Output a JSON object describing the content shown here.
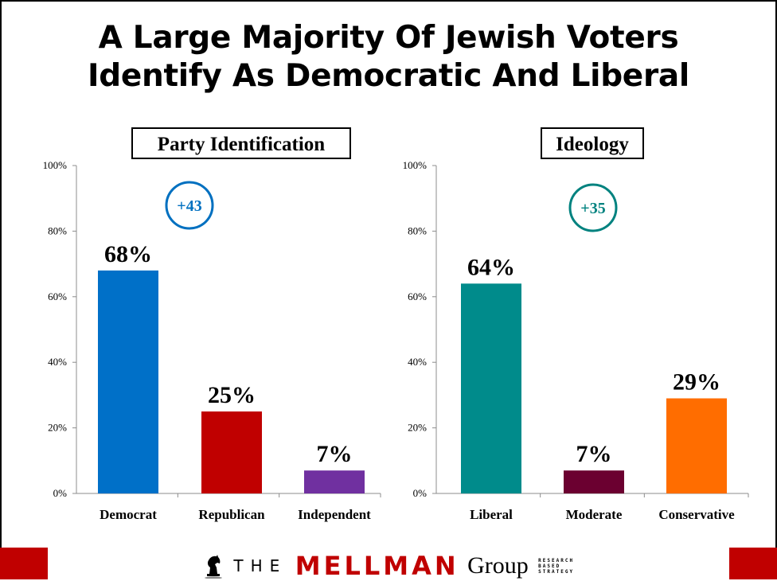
{
  "title_lines": [
    "A Large Majority Of Jewish Voters",
    "Identify As Democratic And Liberal"
  ],
  "chart_data": [
    {
      "type": "bar",
      "title": "Party Identification",
      "categories": [
        "Democrat",
        "Republican",
        "Independent"
      ],
      "values": [
        68,
        25,
        7
      ],
      "data_labels": [
        "68%",
        "25%",
        "7%"
      ],
      "colors": [
        "#0070c8",
        "#c00000",
        "#7030a0"
      ],
      "ylim": [
        0,
        100
      ],
      "yticks": [
        "0%",
        "20%",
        "40%",
        "60%",
        "80%",
        "100%"
      ],
      "annotation": "+43",
      "annotation_color": "#0070c0",
      "grid": false
    },
    {
      "type": "bar",
      "title": "Ideology",
      "categories": [
        "Liberal",
        "Moderate",
        "Conservative"
      ],
      "values": [
        64,
        7,
        29
      ],
      "data_labels": [
        "64%",
        "7%",
        "29%"
      ],
      "colors": [
        "#008b8b",
        "#6b0030",
        "#ff6d00"
      ],
      "ylim": [
        0,
        100
      ],
      "yticks": [
        "0%",
        "20%",
        "40%",
        "60%",
        "80%",
        "100%"
      ],
      "annotation": "+35",
      "annotation_color": "#00827f",
      "grid": false
    }
  ],
  "footer": {
    "the": "THE",
    "mellman": "MELLMAN",
    "group": "Group",
    "tagline": [
      "RESEARCH",
      "BASED",
      "STRATEGY"
    ],
    "logo_icon": "chess-knight-icon",
    "accent_color": "#c00000"
  }
}
